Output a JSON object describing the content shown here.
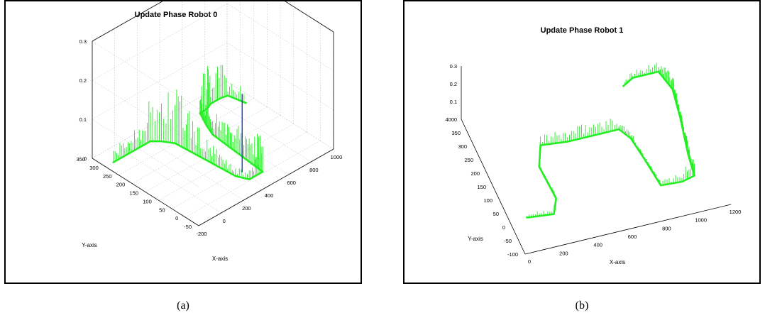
{
  "captions": [
    "(a)",
    "(b)"
  ],
  "colors": {
    "trace": "#22ee22",
    "tall_spike": "#1a3ccc",
    "grid": "#b8b8b8",
    "box": "#000000"
  },
  "chart_data": [
    {
      "type": "line",
      "title": "Update Phase Robot 0",
      "xlabel": "X-axis",
      "ylabel": "Y-axis",
      "zlabel": "",
      "xlim": [
        -200,
        1000
      ],
      "ylim": [
        -50,
        350
      ],
      "zlim": [
        0,
        0.3
      ],
      "x_ticks": [
        "-200",
        "0",
        "200",
        "400",
        "600",
        "800",
        "1000"
      ],
      "y_ticks": [
        "-50",
        "0",
        "50",
        "100",
        "150",
        "200",
        "250",
        "300",
        "350"
      ],
      "z_ticks": [
        "0",
        "0.1",
        "0.2",
        "0.3"
      ],
      "grid": true,
      "series": [
        {
          "values": [
            [
              -130,
              300,
              0.03
            ],
            [
              0,
              300,
              0.04
            ],
            [
              100,
              300,
              0.06
            ],
            [
              200,
              300,
              0.1
            ],
            [
              250,
              280,
              0.12
            ],
            [
              300,
              250,
              0.14
            ],
            [
              320,
              150,
              0.05
            ],
            [
              340,
              40,
              0.02
            ],
            [
              380,
              5,
              0.02
            ],
            [
              500,
              5,
              0.08
            ],
            [
              540,
              210,
              0.05
            ],
            [
              580,
              250,
              0.06
            ],
            [
              640,
              300,
              0.05
            ],
            [
              700,
              300,
              0.14
            ],
            [
              760,
              310,
              0.06
            ],
            [
              850,
              310,
              0.09
            ],
            [
              900,
              305,
              0.04
            ],
            [
              930,
              250,
              0.03
            ]
          ]
        }
      ],
      "tall_spike": [
        400,
        40,
        0.2
      ]
    },
    {
      "type": "line",
      "title": "Update Phase Robot 1",
      "xlabel": "X-axis",
      "ylabel": "Y-axis",
      "zlabel": "",
      "xlim": [
        0,
        1200
      ],
      "ylim": [
        -100,
        400
      ],
      "zlim": [
        0,
        0.3
      ],
      "x_ticks": [
        "0",
        "200",
        "400",
        "600",
        "800",
        "1000",
        "1200"
      ],
      "y_ticks": [
        "-100",
        "-50",
        "0",
        "50",
        "100",
        "150",
        "200",
        "250",
        "300",
        "350",
        "400"
      ],
      "z_ticks": [
        "0",
        "0.1",
        "0.2",
        "0.3"
      ],
      "grid": false,
      "series": [
        {
          "values": [
            [
              100,
              20,
              0.02
            ],
            [
              250,
              10,
              0.04
            ],
            [
              300,
              60,
              0.02
            ],
            [
              290,
              180,
              0.01
            ],
            [
              350,
              250,
              0.05
            ],
            [
              500,
              240,
              0.06
            ],
            [
              700,
              240,
              0.08
            ],
            [
              800,
              240,
              0.05
            ],
            [
              840,
              200,
              0.03
            ],
            [
              860,
              120,
              0.02
            ],
            [
              880,
              20,
              0.02
            ],
            [
              1000,
              15,
              0.06
            ],
            [
              1080,
              25,
              0.08
            ],
            [
              1100,
              100,
              0.06
            ],
            [
              1150,
              230,
              0.05
            ],
            [
              1180,
              330,
              0.08
            ],
            [
              1150,
              400,
              0.05
            ],
            [
              1000,
              400,
              0.04
            ],
            [
              930,
              380,
              0.02
            ]
          ]
        }
      ]
    }
  ]
}
